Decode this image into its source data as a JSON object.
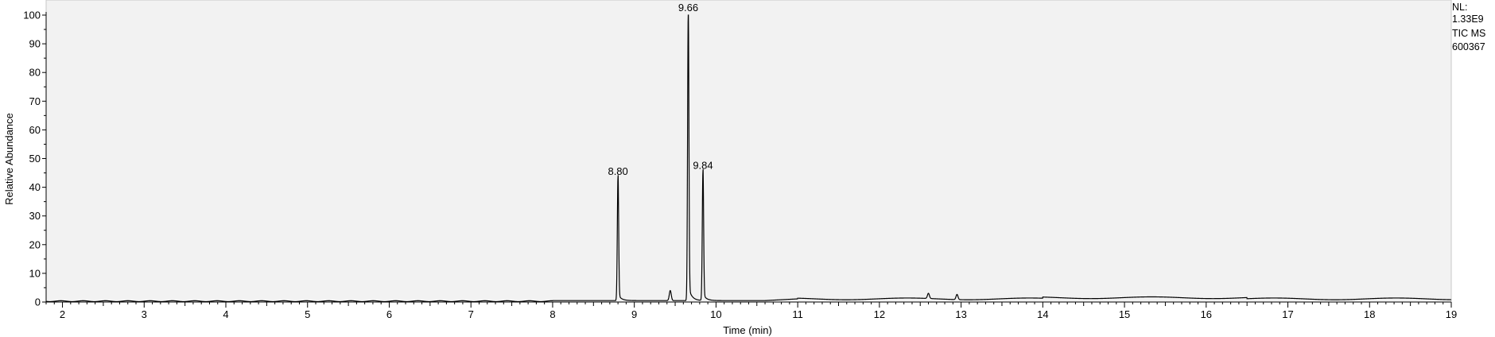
{
  "chart_data": {
    "type": "line",
    "xlabel": "Time (min)",
    "ylabel": "Relative Abundance",
    "xlim": [
      1.8,
      19.0
    ],
    "ylim": [
      0,
      100
    ],
    "x_ticks": [
      2,
      3,
      4,
      5,
      6,
      7,
      8,
      9,
      10,
      11,
      12,
      13,
      14,
      15,
      16,
      17,
      18,
      19
    ],
    "y_ticks": [
      0,
      10,
      20,
      30,
      40,
      50,
      60,
      70,
      80,
      90,
      100
    ],
    "grid": false,
    "peaks": [
      {
        "rt": 8.8,
        "height": 43,
        "label": "8.80"
      },
      {
        "rt": 9.66,
        "height": 100,
        "label": "9.66"
      },
      {
        "rt": 9.84,
        "height": 45,
        "label": "9.84"
      }
    ],
    "minor_peaks": [
      {
        "rt": 9.44,
        "height": 3.5
      },
      {
        "rt": 12.6,
        "height": 1.8
      },
      {
        "rt": 12.95,
        "height": 1.8
      }
    ],
    "annotations": [
      "NL:",
      "1.33E9",
      "TIC  MS",
      "600367"
    ],
    "colors": {
      "plot_background": "#f2f2f2",
      "trace": "#000000"
    }
  }
}
